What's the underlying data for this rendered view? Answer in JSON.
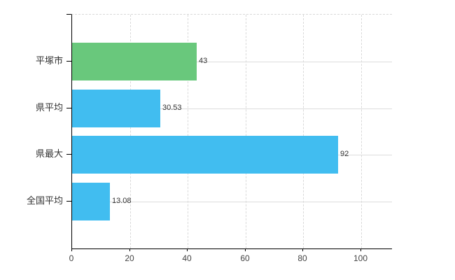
{
  "chart_data": {
    "type": "bar",
    "orientation": "horizontal",
    "title": "",
    "xlabel": "",
    "ylabel": "",
    "categories": [
      "平塚市",
      "県平均",
      "県最大",
      "全国平均"
    ],
    "values": [
      43,
      30.53,
      92,
      13.08
    ],
    "value_labels": [
      "43",
      "30.53",
      "92",
      "13.08"
    ],
    "bar_colors": [
      "#69c87c",
      "#41bdf0",
      "#41bdf0",
      "#41bdf0"
    ],
    "xlim": [
      0,
      110
    ],
    "xticks": [
      0,
      20,
      40,
      60,
      80,
      100
    ],
    "xtick_labels": [
      "0",
      "20",
      "40",
      "60",
      "80",
      "100"
    ],
    "grid": "on",
    "legend": "none",
    "colors": {
      "axis": "#000000",
      "gridline": "#d9d9d9",
      "text": "#333333",
      "background": "#ffffff"
    }
  }
}
